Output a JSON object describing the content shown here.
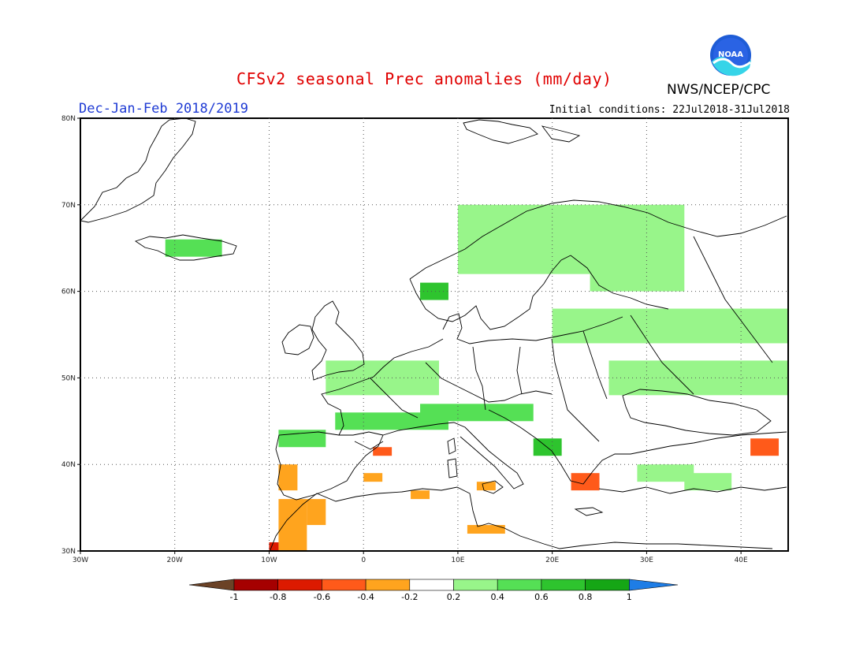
{
  "header": {
    "title": "CFSv2 seasonal Prec anomalies (mm/day)",
    "period": "Dec-Jan-Feb 2018/2019",
    "agency": "NWS/NCEP/CPC",
    "initial_conditions": "Initial conditions: 22Jul2018-31Jul2018",
    "logo_text": "NOAA"
  },
  "map": {
    "lon_range": [
      -30,
      45
    ],
    "lat_range": [
      30,
      80
    ],
    "lon_ticks": [
      {
        "value": -30,
        "label": "30W"
      },
      {
        "value": -20,
        "label": "20W"
      },
      {
        "value": -10,
        "label": "10W"
      },
      {
        "value": 0,
        "label": "0"
      },
      {
        "value": 10,
        "label": "10E"
      },
      {
        "value": 20,
        "label": "20E"
      },
      {
        "value": 30,
        "label": "30E"
      },
      {
        "value": 40,
        "label": "40E"
      }
    ],
    "lat_ticks": [
      {
        "value": 30,
        "label": "30N"
      },
      {
        "value": 40,
        "label": "40N"
      },
      {
        "value": 50,
        "label": "50N"
      },
      {
        "value": 60,
        "label": "60N"
      },
      {
        "value": 70,
        "label": "70N"
      },
      {
        "value": 80,
        "label": "80N"
      }
    ],
    "grid": true
  },
  "colorbar": {
    "labels": [
      "-1",
      "-0.8",
      "-0.6",
      "-0.4",
      "-0.2",
      "0.2",
      "0.4",
      "0.6",
      "0.8",
      "1"
    ],
    "colors": [
      "#6b4226",
      "#a50000",
      "#dc1a00",
      "#ff5a1a",
      "#ffa41e",
      "#ffffff",
      "#98f58a",
      "#55e055",
      "#2ec42e",
      "#15a615",
      "#1e7de6"
    ]
  },
  "chart_data": {
    "type": "heatmap",
    "units": "mm/day",
    "cell_size_deg": 2,
    "anomaly_regions": [
      {
        "lon": 10,
        "lat": 62,
        "w": 20,
        "h": 8,
        "value": 0.3
      },
      {
        "lon": 24,
        "lat": 60,
        "w": 10,
        "h": 10,
        "value": 0.3
      },
      {
        "lon": 20,
        "lat": 54,
        "w": 25,
        "h": 4,
        "value": 0.3
      },
      {
        "lon": 26,
        "lat": 48,
        "w": 19,
        "h": 4,
        "value": 0.3
      },
      {
        "lon": -4,
        "lat": 48,
        "w": 12,
        "h": 4,
        "value": 0.3
      },
      {
        "lon": -3,
        "lat": 44,
        "w": 12,
        "h": 2,
        "value": 0.5
      },
      {
        "lon": 6,
        "lat": 45,
        "w": 12,
        "h": 2,
        "value": 0.5
      },
      {
        "lon": -9,
        "lat": 42,
        "w": 5,
        "h": 2,
        "value": 0.5
      },
      {
        "lon": 18,
        "lat": 41,
        "w": 3,
        "h": 2,
        "value": 0.7
      },
      {
        "lon": 6,
        "lat": 59,
        "w": 3,
        "h": 2,
        "value": 0.7
      },
      {
        "lon": -21,
        "lat": 64,
        "w": 6,
        "h": 2,
        "value": 0.5
      },
      {
        "lon": 29,
        "lat": 38,
        "w": 6,
        "h": 2,
        "value": 0.3
      },
      {
        "lon": 34,
        "lat": 37,
        "w": 5,
        "h": 2,
        "value": 0.3
      },
      {
        "lon": -9,
        "lat": 37,
        "w": 2,
        "h": 3,
        "value": -0.3
      },
      {
        "lon": -9,
        "lat": 30,
        "w": 3,
        "h": 6,
        "value": -0.3
      },
      {
        "lon": -6,
        "lat": 33,
        "w": 2,
        "h": 3,
        "value": -0.3
      },
      {
        "lon": -10,
        "lat": 30,
        "w": 1,
        "h": 1,
        "value": -0.7
      },
      {
        "lon": 22,
        "lat": 37,
        "w": 3,
        "h": 2,
        "value": -0.5
      },
      {
        "lon": 41,
        "lat": 41,
        "w": 3,
        "h": 2,
        "value": -0.5
      },
      {
        "lon": 0,
        "lat": 38,
        "w": 2,
        "h": 1,
        "value": -0.3
      },
      {
        "lon": 1,
        "lat": 41,
        "w": 2,
        "h": 1,
        "value": -0.5
      },
      {
        "lon": 12,
        "lat": 37,
        "w": 2,
        "h": 1,
        "value": -0.3
      },
      {
        "lon": 5,
        "lat": 36,
        "w": 2,
        "h": 1,
        "value": -0.3
      },
      {
        "lon": 11,
        "lat": 32,
        "w": 4,
        "h": 1,
        "value": -0.3
      }
    ]
  }
}
